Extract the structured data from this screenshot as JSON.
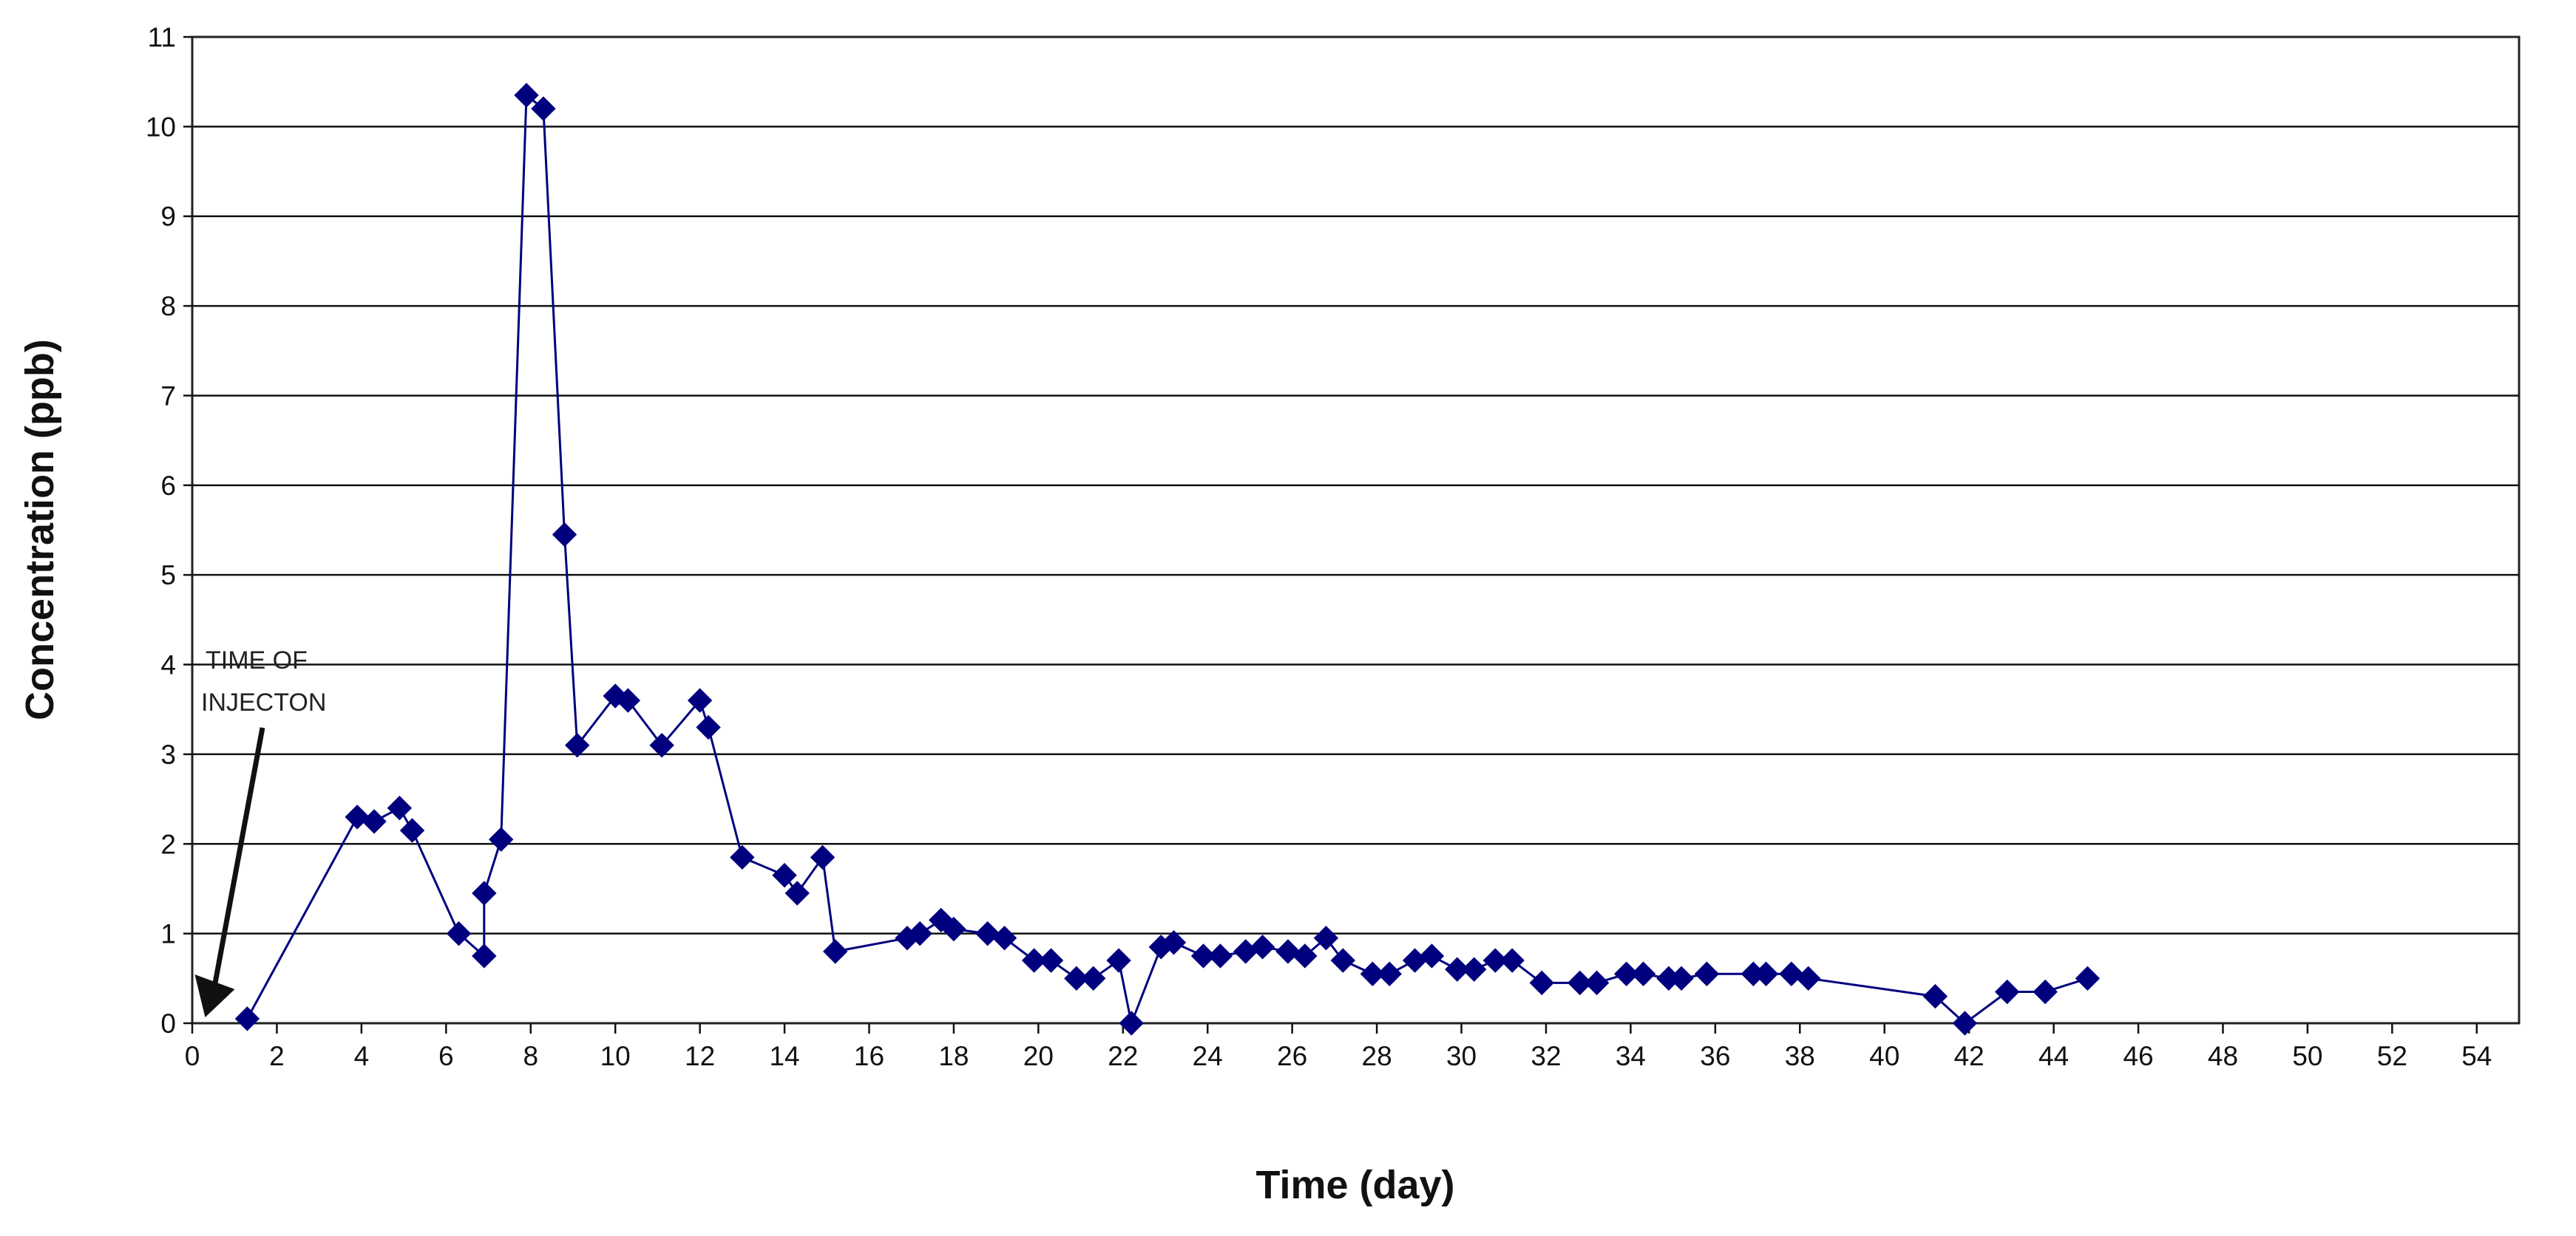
{
  "chart_data": {
    "type": "line",
    "title": "",
    "xlabel": "Time (day)",
    "ylabel": "Concentration (ppb)",
    "xlim": [
      0,
      55
    ],
    "ylim": [
      0,
      11
    ],
    "xticks": [
      0,
      2,
      4,
      6,
      8,
      10,
      12,
      14,
      16,
      18,
      20,
      22,
      24,
      26,
      28,
      30,
      32,
      34,
      36,
      38,
      40,
      42,
      44,
      46,
      48,
      50,
      52,
      54
    ],
    "yticks": [
      0,
      1,
      2,
      3,
      4,
      5,
      6,
      7,
      8,
      9,
      10,
      11
    ],
    "grid": "horizontal",
    "legend": "none",
    "series_color": "#00007F",
    "annotation": {
      "lines": [
        "TIME OF",
        "INJECTON"
      ],
      "arrow_to": [
        0.2,
        0.0
      ]
    },
    "series": [
      {
        "marker": "diamond",
        "points": [
          [
            1.3,
            0.05
          ],
          [
            3.9,
            2.3
          ],
          [
            4.3,
            2.25
          ],
          [
            4.9,
            2.4
          ],
          [
            5.2,
            2.15
          ],
          [
            6.3,
            1.0
          ],
          [
            6.9,
            0.75
          ],
          [
            6.9,
            1.45
          ],
          [
            7.3,
            2.05
          ],
          [
            7.9,
            10.35
          ],
          [
            8.3,
            10.2
          ],
          [
            8.8,
            5.45
          ],
          [
            9.1,
            3.1
          ],
          [
            10.0,
            3.65
          ],
          [
            10.3,
            3.6
          ],
          [
            11.1,
            3.1
          ],
          [
            12.0,
            3.6
          ],
          [
            12.2,
            3.3
          ],
          [
            13.0,
            1.85
          ],
          [
            14.0,
            1.65
          ],
          [
            14.3,
            1.45
          ],
          [
            14.9,
            1.85
          ],
          [
            15.2,
            0.8
          ],
          [
            16.9,
            0.95
          ],
          [
            17.2,
            1.0
          ],
          [
            17.7,
            1.15
          ],
          [
            18.0,
            1.05
          ],
          [
            18.8,
            1.0
          ],
          [
            19.2,
            0.95
          ],
          [
            19.9,
            0.7
          ],
          [
            20.3,
            0.7
          ],
          [
            20.9,
            0.5
          ],
          [
            21.3,
            0.5
          ],
          [
            21.9,
            0.7
          ],
          [
            22.2,
            0.0
          ],
          [
            22.9,
            0.85
          ],
          [
            23.2,
            0.9
          ],
          [
            23.9,
            0.75
          ],
          [
            24.3,
            0.75
          ],
          [
            24.9,
            0.8
          ],
          [
            25.3,
            0.85
          ],
          [
            25.9,
            0.8
          ],
          [
            26.3,
            0.75
          ],
          [
            26.8,
            0.95
          ],
          [
            27.2,
            0.7
          ],
          [
            27.9,
            0.55
          ],
          [
            28.3,
            0.55
          ],
          [
            28.9,
            0.7
          ],
          [
            29.3,
            0.75
          ],
          [
            29.9,
            0.6
          ],
          [
            30.3,
            0.6
          ],
          [
            30.8,
            0.7
          ],
          [
            31.2,
            0.7
          ],
          [
            31.9,
            0.45
          ],
          [
            32.8,
            0.45
          ],
          [
            33.2,
            0.45
          ],
          [
            33.9,
            0.55
          ],
          [
            34.3,
            0.55
          ],
          [
            34.9,
            0.5
          ],
          [
            35.2,
            0.5
          ],
          [
            35.8,
            0.55
          ],
          [
            36.9,
            0.55
          ],
          [
            37.2,
            0.55
          ],
          [
            37.8,
            0.55
          ],
          [
            38.2,
            0.5
          ],
          [
            41.2,
            0.3
          ],
          [
            41.9,
            0.0
          ],
          [
            42.9,
            0.35
          ],
          [
            43.8,
            0.35
          ],
          [
            44.8,
            0.5
          ]
        ]
      }
    ]
  }
}
